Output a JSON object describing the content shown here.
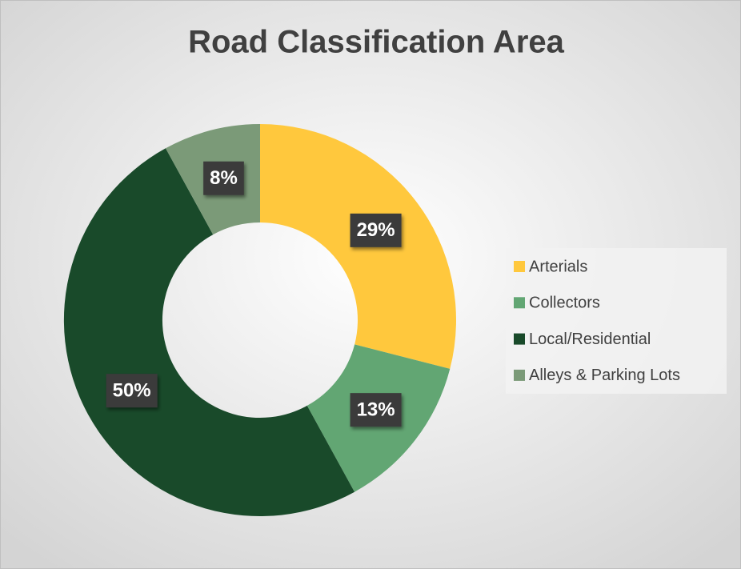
{
  "chart_data": {
    "type": "donut",
    "title": "Road Classification Area",
    "categories": [
      "Arterials",
      "Collectors",
      "Local/Residential",
      "Alleys & Parking Lots"
    ],
    "values": [
      29,
      13,
      50,
      8
    ],
    "value_labels": [
      "29%",
      "13%",
      "50%",
      "8%"
    ],
    "colors": [
      "#ffc83d",
      "#62a673",
      "#194a2a",
      "#7b9a78"
    ],
    "legend": "right"
  }
}
